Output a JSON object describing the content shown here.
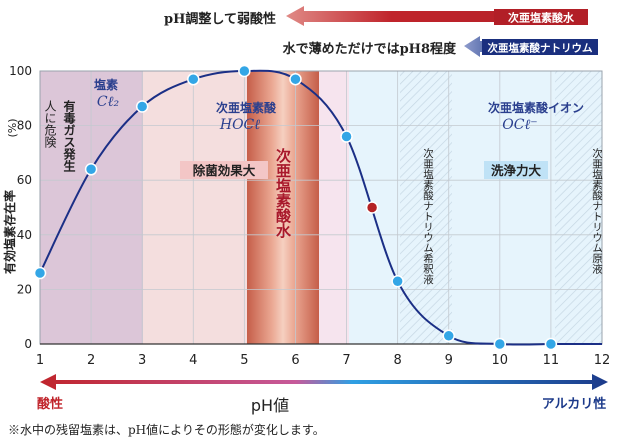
{
  "header": {
    "row1_text": "pH調整して弱酸性",
    "row1_badge": "次亜塩素酸水",
    "row2_text": "水で薄めただけではpH8程度",
    "row2_badge": "次亜塩素酸ナトリウム"
  },
  "labels": {
    "cl2_name": "塩素",
    "cl2_formula": "Cℓ₂",
    "hocl_name": "次亜塩素酸",
    "hocl_formula": "HOCℓ",
    "ocl_name": "次亜塩素酸イオン",
    "ocl_formula": "OCℓ⁻",
    "danger_col1": "人に危険",
    "danger_col2": "有毒ガス発生",
    "sterilize_box": "除菌効果大",
    "band_label": "次亜塩素酸水",
    "dilute_label": "次亜塩素酸ナトリウム希釈液",
    "clean_box": "洗浄力大",
    "original_label": "次亜塩素酸ナトリウム原液",
    "y_unit": "(%)",
    "acid": "酸性",
    "alkali": "アルカリ性",
    "footnote": "※水中の残留塩素は、pH値によりその形態が変化します。"
  },
  "chart_data": {
    "type": "line",
    "title": "",
    "xlabel": "pH値",
    "ylabel": "有効塩素存在率",
    "xlim": [
      1,
      12
    ],
    "ylim": [
      0,
      100
    ],
    "x_ticks": [
      1,
      2,
      3,
      4,
      5,
      6,
      7,
      8,
      9,
      10,
      11,
      12
    ],
    "y_ticks": [
      0,
      20,
      40,
      60,
      80,
      100
    ],
    "series": [
      {
        "x": [
          1,
          2,
          3,
          4,
          5,
          6,
          7,
          8,
          9,
          10,
          11
        ],
        "values": [
          26,
          64,
          87,
          97,
          100,
          97,
          76,
          23,
          3,
          0,
          0
        ]
      }
    ],
    "highlight_point": {
      "x": 7.5,
      "y": 50
    },
    "colors": {
      "curve": "#1b2f86",
      "marker": "#33a6e6",
      "highlight": "#b52224",
      "acid_arrow": "#c0242b",
      "alkali_arrow": "#1c3a8a"
    }
  }
}
